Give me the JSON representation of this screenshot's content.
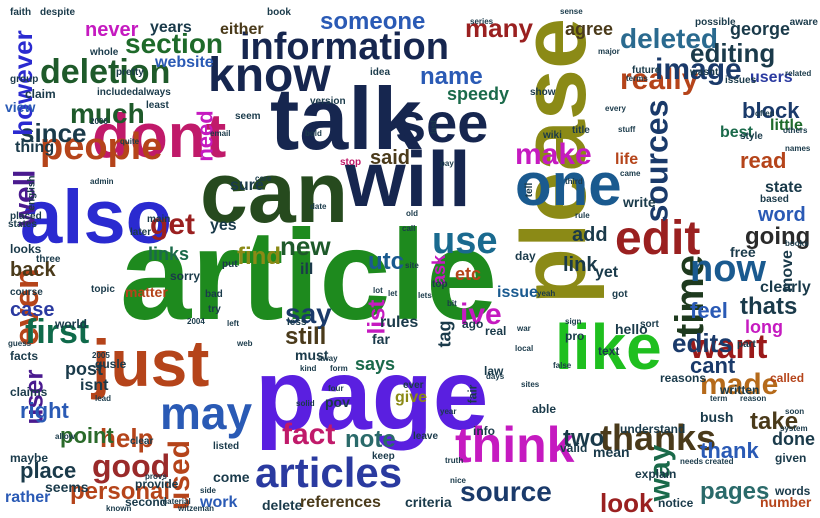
{
  "words": [
    {
      "text": "article",
      "color": "#1e8a1e"
    },
    {
      "text": "page",
      "color": "#5a1fe0"
    },
    {
      "text": "please",
      "color": "#8b8a16"
    },
    {
      "text": "talk",
      "color": "#16264f"
    },
    {
      "text": "can",
      "color": "#264a1e"
    },
    {
      "text": "will",
      "color": "#16264f"
    },
    {
      "text": "one",
      "color": "#1a5a8f"
    },
    {
      "text": "dont",
      "color": "#c01a6a"
    },
    {
      "text": "just",
      "color": "#b5441a"
    },
    {
      "text": "also",
      "color": "#2a2ad0"
    },
    {
      "text": "like",
      "color": "#1fbf1f"
    },
    {
      "text": "think",
      "color": "#c51ac0"
    },
    {
      "text": "see",
      "color": "#16264f"
    },
    {
      "text": "know",
      "color": "#16264f"
    },
    {
      "text": "information",
      "color": "#16264f"
    },
    {
      "text": "edit",
      "color": "#9a2020"
    },
    {
      "text": "articles",
      "color": "#2a3aa0"
    },
    {
      "text": "may",
      "color": "#2a5ab5"
    },
    {
      "text": "people",
      "color": "#b5441a"
    },
    {
      "text": "deletion",
      "color": "#1e5a2a"
    },
    {
      "text": "use",
      "color": "#1a6a8f"
    },
    {
      "text": "time",
      "color": "#1e3a1e"
    },
    {
      "text": "now",
      "color": "#1a5a8f"
    },
    {
      "text": "even",
      "color": "#b5441a"
    },
    {
      "text": "well",
      "color": "#4a1a8f"
    },
    {
      "text": "first",
      "color": "#0f6a4a"
    },
    {
      "text": "sources",
      "color": "#1a3a6a"
    },
    {
      "text": "want",
      "color": "#9a1a1a"
    },
    {
      "text": "thanks",
      "color": "#4a3a1a"
    },
    {
      "text": "made",
      "color": "#b56a1a"
    },
    {
      "text": "way",
      "color": "#1a6a4a"
    },
    {
      "text": "good",
      "color": "#9a2a2a"
    },
    {
      "text": "used",
      "color": "#b5441a"
    },
    {
      "text": "fact",
      "color": "#c01a6a"
    },
    {
      "text": "help",
      "color": "#b5441a"
    },
    {
      "text": "user",
      "color": "#4a1a8f"
    },
    {
      "text": "source",
      "color": "#1a3a6a"
    },
    {
      "text": "make",
      "color": "#c51ac0"
    },
    {
      "text": "really",
      "color": "#b5441a"
    },
    {
      "text": "much",
      "color": "#1e5a2a"
    },
    {
      "text": "section",
      "color": "#1e6a2a"
    },
    {
      "text": "image",
      "color": "#1a3a6a"
    },
    {
      "text": "get",
      "color": "#9a2020"
    },
    {
      "text": "deleted",
      "color": "#2a6a8f"
    },
    {
      "text": "editing",
      "color": "#1a3a4a"
    },
    {
      "text": "name",
      "color": "#2a5ab5"
    },
    {
      "text": "someone",
      "color": "#2a5ab5"
    },
    {
      "text": "edits",
      "color": "#1a3a6a"
    },
    {
      "text": "thats",
      "color": "#1a3a4a"
    },
    {
      "text": "say",
      "color": "#1a3a6a"
    },
    {
      "text": "ive",
      "color": "#c51ac0"
    },
    {
      "text": "still",
      "color": "#4a3a1a"
    },
    {
      "text": "new",
      "color": "#1e5a2a"
    },
    {
      "text": "since",
      "color": "#1a3a4a"
    },
    {
      "text": "need",
      "color": "#c51ac0"
    },
    {
      "text": "however",
      "color": "#2a2ad0"
    },
    {
      "text": "many",
      "color": "#9a2020"
    },
    {
      "text": "going",
      "color": "#2a2a2a"
    },
    {
      "text": "find",
      "color": "#8b8a16"
    },
    {
      "text": "utc",
      "color": "#1a5a8f"
    },
    {
      "text": "look",
      "color": "#9a2020"
    },
    {
      "text": "pages",
      "color": "#2a6a6a"
    },
    {
      "text": "take",
      "color": "#4a3a1a"
    },
    {
      "text": "personal",
      "color": "#b5441a"
    },
    {
      "text": "thank",
      "color": "#2a5ab5"
    },
    {
      "text": "point",
      "color": "#2a6a2a"
    },
    {
      "text": "place",
      "color": "#1a3a4a"
    },
    {
      "text": "right",
      "color": "#2a5ab5"
    },
    {
      "text": "back",
      "color": "#4a3a1a"
    },
    {
      "text": "case",
      "color": "#2a3aa0"
    },
    {
      "text": "note",
      "color": "#2a6a6a"
    },
    {
      "text": "two",
      "color": "#1a3a4a"
    },
    {
      "text": "feel",
      "color": "#2a5ab5"
    },
    {
      "text": "cant",
      "color": "#1a3a6a"
    },
    {
      "text": "list",
      "color": "#c51ac0"
    },
    {
      "text": "add",
      "color": "#1a3a4a"
    },
    {
      "text": "link",
      "color": "#1a3a4a"
    },
    {
      "text": "links",
      "color": "#1a6a4a"
    },
    {
      "text": "said",
      "color": "#4a3a1a"
    },
    {
      "text": "agree",
      "color": "#4a3a1a"
    },
    {
      "text": "block",
      "color": "#1a3a6a"
    },
    {
      "text": "read",
      "color": "#b5441a"
    },
    {
      "text": "word",
      "color": "#2a5ab5"
    },
    {
      "text": "clearly",
      "color": "#1a3a4a"
    },
    {
      "text": "long",
      "color": "#c51ac0"
    },
    {
      "text": "done",
      "color": "#1a3a4a"
    },
    {
      "text": "website",
      "color": "#2a5ab5"
    },
    {
      "text": "never",
      "color": "#c51ac0"
    },
    {
      "text": "years",
      "color": "#1a3a4a"
    },
    {
      "text": "either",
      "color": "#4a3a1a"
    },
    {
      "text": "george",
      "color": "#1a3a4a"
    },
    {
      "text": "users",
      "color": "#2a3aa0"
    },
    {
      "text": "state",
      "color": "#1a3a4a"
    },
    {
      "text": "move",
      "color": "#1a3a4a"
    },
    {
      "text": "best",
      "color": "#1a6a4a"
    },
    {
      "text": "little",
      "color": "#1e6a2a"
    },
    {
      "text": "sure",
      "color": "#1a3a4a"
    },
    {
      "text": "ill",
      "color": "#1a3a4a"
    },
    {
      "text": "yet",
      "color": "#1a3a4a"
    },
    {
      "text": "rules",
      "color": "#1a3a4a"
    },
    {
      "text": "etc",
      "color": "#b5441a"
    },
    {
      "text": "says",
      "color": "#1a6a4a"
    },
    {
      "text": "ask",
      "color": "#c51ac0"
    },
    {
      "text": "issue",
      "color": "#1a5a8f"
    },
    {
      "text": "tag",
      "color": "#1a3a4a"
    },
    {
      "text": "far",
      "color": "#1a3a4a"
    },
    {
      "text": "give",
      "color": "#8b8a16"
    },
    {
      "text": "must",
      "color": "#1a3a4a"
    },
    {
      "text": "free",
      "color": "#1a3a4a"
    },
    {
      "text": "post",
      "color": "#1a3a4a"
    },
    {
      "text": "isnt",
      "color": "#1a3a4a"
    },
    {
      "text": "matter",
      "color": "#b5441a"
    },
    {
      "text": "come",
      "color": "#1a3a4a"
    },
    {
      "text": "yes",
      "color": "#1a3a4a"
    },
    {
      "text": "speedy",
      "color": "#1a6a4a"
    },
    {
      "text": "work",
      "color": "#2a5ab5"
    },
    {
      "text": "delete",
      "color": "#1a3a4a"
    },
    {
      "text": "references",
      "color": "#4a3a1a"
    },
    {
      "text": "criteria",
      "color": "#1a3a4a"
    },
    {
      "text": "number",
      "color": "#b5441a"
    },
    {
      "text": "words",
      "color": "#1a3a4a"
    },
    {
      "text": "rather",
      "color": "#2a5ab5"
    },
    {
      "text": "seems",
      "color": "#1a3a4a"
    },
    {
      "text": "provide",
      "color": "#1a3a4a"
    },
    {
      "text": "second",
      "color": "#1a3a4a"
    },
    {
      "text": "mean",
      "color": "#1a3a4a"
    },
    {
      "text": "valid",
      "color": "#1a3a4a"
    },
    {
      "text": "understand",
      "color": "#1a3a4a"
    },
    {
      "text": "reasons",
      "color": "#1a3a4a"
    },
    {
      "text": "called",
      "color": "#b5441a"
    },
    {
      "text": "written",
      "color": "#1a3a4a"
    },
    {
      "text": "given",
      "color": "#1a3a4a"
    },
    {
      "text": "bush",
      "color": "#1a3a4a"
    },
    {
      "text": "explain",
      "color": "#1a3a4a"
    },
    {
      "text": "notice",
      "color": "#1a3a4a"
    },
    {
      "text": "hello",
      "color": "#1a3a4a"
    },
    {
      "text": "pro",
      "color": "#1a3a4a"
    },
    {
      "text": "text",
      "color": "#1a3a4a"
    },
    {
      "text": "real",
      "color": "#1a3a4a"
    },
    {
      "text": "ago",
      "color": "#1a3a4a"
    },
    {
      "text": "info",
      "color": "#1a3a4a"
    },
    {
      "text": "able",
      "color": "#1a3a4a"
    },
    {
      "text": "law",
      "color": "#1a3a4a"
    },
    {
      "text": "life",
      "color": "#b5441a"
    },
    {
      "text": "write",
      "color": "#1a3a4a"
    },
    {
      "text": "pov",
      "color": "#1a3a4a"
    },
    {
      "text": "looks",
      "color": "#1a3a4a"
    },
    {
      "text": "facts",
      "color": "#1a3a4a"
    },
    {
      "text": "claims",
      "color": "#1a3a4a"
    },
    {
      "text": "maybe",
      "color": "#1a3a4a"
    },
    {
      "text": "gusle",
      "color": "#1a3a4a"
    },
    {
      "text": "world",
      "color": "#1a3a4a"
    },
    {
      "text": "thing",
      "color": "#1a3a4a"
    },
    {
      "text": "view",
      "color": "#2a5ab5"
    },
    {
      "text": "claim",
      "color": "#1a3a4a"
    },
    {
      "text": "group",
      "color": "#1a3a4a"
    },
    {
      "text": "faith",
      "color": "#1a3a4a"
    },
    {
      "text": "despite",
      "color": "#1a3a4a"
    },
    {
      "text": "book",
      "color": "#1a3a4a"
    },
    {
      "text": "possible",
      "color": "#1a3a4a"
    },
    {
      "text": "aware",
      "color": "#1a3a4a"
    },
    {
      "text": "future",
      "color": "#1a3a4a"
    },
    {
      "text": "wasnt",
      "color": "#1a3a4a"
    },
    {
      "text": "issues",
      "color": "#1a3a4a"
    },
    {
      "text": "show",
      "color": "#1a3a4a"
    },
    {
      "text": "version",
      "color": "#1a3a4a"
    },
    {
      "text": "stop",
      "color": "#c01a6a"
    },
    {
      "text": "idea",
      "color": "#1a3a4a"
    },
    {
      "text": "pretty",
      "color": "#1a3a4a"
    },
    {
      "text": "always",
      "color": "#1a3a4a"
    },
    {
      "text": "included",
      "color": "#1a3a4a"
    },
    {
      "text": "least",
      "color": "#1a3a4a"
    },
    {
      "text": "whole",
      "color": "#1a3a4a"
    },
    {
      "text": "seem",
      "color": "#1a3a4a"
    },
    {
      "text": "style",
      "color": "#1a3a4a"
    },
    {
      "text": "related",
      "color": "#1a3a4a"
    },
    {
      "text": "wiki",
      "color": "#1a3a4a"
    },
    {
      "text": "title",
      "color": "#1a3a4a"
    },
    {
      "text": "terms",
      "color": "#1a3a4a"
    },
    {
      "text": "sorry",
      "color": "#1a3a4a"
    },
    {
      "text": "main",
      "color": "#1a3a4a"
    },
    {
      "text": "later",
      "color": "#1a3a4a"
    },
    {
      "text": "states",
      "color": "#1a3a4a"
    },
    {
      "text": "english",
      "color": "#1a3a4a"
    },
    {
      "text": "placed",
      "color": "#1a3a4a"
    },
    {
      "text": "topic",
      "color": "#1a3a4a"
    },
    {
      "text": "course",
      "color": "#1a3a4a"
    },
    {
      "text": "three",
      "color": "#1a3a4a"
    },
    {
      "text": "bad",
      "color": "#1a3a4a"
    },
    {
      "text": "try",
      "color": "#1a3a4a"
    },
    {
      "text": "put",
      "color": "#1a3a4a"
    },
    {
      "text": "less",
      "color": "#1a3a4a"
    },
    {
      "text": "got",
      "color": "#1a3a4a"
    },
    {
      "text": "sort",
      "color": "#1a3a4a"
    },
    {
      "text": "part",
      "color": "#1a3a4a"
    },
    {
      "text": "based",
      "color": "#1a3a4a"
    },
    {
      "text": "books",
      "color": "#1a3a4a"
    },
    {
      "text": "day",
      "color": "#1a3a4a"
    },
    {
      "text": "top",
      "color": "#1a3a4a"
    },
    {
      "text": "fair",
      "color": "#1a3a4a"
    },
    {
      "text": "ever",
      "color": "#1a3a4a"
    },
    {
      "text": "keep",
      "color": "#1a3a4a"
    },
    {
      "text": "leave",
      "color": "#1a3a4a"
    },
    {
      "text": "truth",
      "color": "#1a3a4a"
    },
    {
      "text": "nice",
      "color": "#1a3a4a"
    },
    {
      "text": "needs",
      "color": "#1a3a4a"
    },
    {
      "text": "created",
      "color": "#1a3a4a"
    },
    {
      "text": "listed",
      "color": "#1a3a4a"
    },
    {
      "text": "clear",
      "color": "#1a3a4a"
    },
    {
      "text": "lead",
      "color": "#1a3a4a"
    },
    {
      "text": "material",
      "color": "#1a3a4a"
    },
    {
      "text": "witzeman",
      "color": "#1a3a4a"
    },
    {
      "text": "known",
      "color": "#1a3a4a"
    },
    {
      "text": "side",
      "color": "#1a3a4a"
    },
    {
      "text": "allow",
      "color": "#1a3a4a"
    },
    {
      "text": "guess",
      "color": "#1a3a4a"
    },
    {
      "text": "soon",
      "color": "#1a3a4a"
    },
    {
      "text": "term",
      "color": "#1a3a4a"
    },
    {
      "text": "reason",
      "color": "#1a3a4a"
    },
    {
      "text": "sites",
      "color": "#1a3a4a"
    },
    {
      "text": "days",
      "color": "#1a3a4a"
    },
    {
      "text": "four",
      "color": "#1a3a4a"
    },
    {
      "text": "form",
      "color": "#1a3a4a"
    },
    {
      "text": "away",
      "color": "#1a3a4a"
    },
    {
      "text": "kind",
      "color": "#1a3a4a"
    },
    {
      "text": "web",
      "color": "#1a3a4a"
    },
    {
      "text": "left",
      "color": "#1a3a4a"
    },
    {
      "text": "2004",
      "color": "#1a3a4a"
    },
    {
      "text": "2005",
      "color": "#1a3a4a"
    },
    {
      "text": "2006",
      "color": "#1a3a4a"
    },
    {
      "text": "admin",
      "color": "#1a3a4a"
    },
    {
      "text": "quite",
      "color": "#1a3a4a"
    },
    {
      "text": "email",
      "color": "#1a3a4a"
    },
    {
      "text": "care",
      "color": "#1a3a4a"
    },
    {
      "text": "date",
      "color": "#1a3a4a"
    },
    {
      "text": "lot",
      "color": "#1a3a4a"
    },
    {
      "text": "old",
      "color": "#1a3a4a"
    },
    {
      "text": "call",
      "color": "#1a3a4a"
    },
    {
      "text": "site",
      "color": "#1a3a4a"
    },
    {
      "text": "lets",
      "color": "#1a3a4a"
    },
    {
      "text": "rule",
      "color": "#1a3a4a"
    },
    {
      "text": "third",
      "color": "#1a3a4a"
    },
    {
      "text": "came",
      "color": "#1a3a4a"
    },
    {
      "text": "tell",
      "color": "#1a3a4a"
    },
    {
      "text": "last",
      "color": "#1a3a4a"
    },
    {
      "text": "series",
      "color": "#1a3a4a"
    },
    {
      "text": "sense",
      "color": "#1a3a4a"
    },
    {
      "text": "major",
      "color": "#1a3a4a"
    },
    {
      "text": "every",
      "color": "#1a3a4a"
    },
    {
      "text": "names",
      "color": "#1a3a4a"
    },
    {
      "text": "others",
      "color": "#1a3a4a"
    },
    {
      "text": "stuff",
      "color": "#1a3a4a"
    },
    {
      "text": "bit",
      "color": "#1a3a4a"
    },
    {
      "text": "let",
      "color": "#1a3a4a"
    },
    {
      "text": "sign",
      "color": "#1a3a4a"
    },
    {
      "text": "war",
      "color": "#1a3a4a"
    },
    {
      "text": "local",
      "color": "#1a3a4a"
    },
    {
      "text": "false",
      "color": "#1a3a4a"
    },
    {
      "text": "system",
      "color": "#1a3a4a"
    },
    {
      "text": "provs",
      "color": "#1a3a4a"
    },
    {
      "text": "yeah",
      "color": "#1a3a4a"
    },
    {
      "text": "year",
      "color": "#1a3a4a"
    },
    {
      "text": "solid",
      "color": "#1a3a4a"
    },
    {
      "text": "often",
      "color": "#1a3a4a"
    },
    {
      "text": "bold",
      "color": "#1a3a4a"
    },
    {
      "text": "pay",
      "color": "#1a3a4a"
    }
  ]
}
